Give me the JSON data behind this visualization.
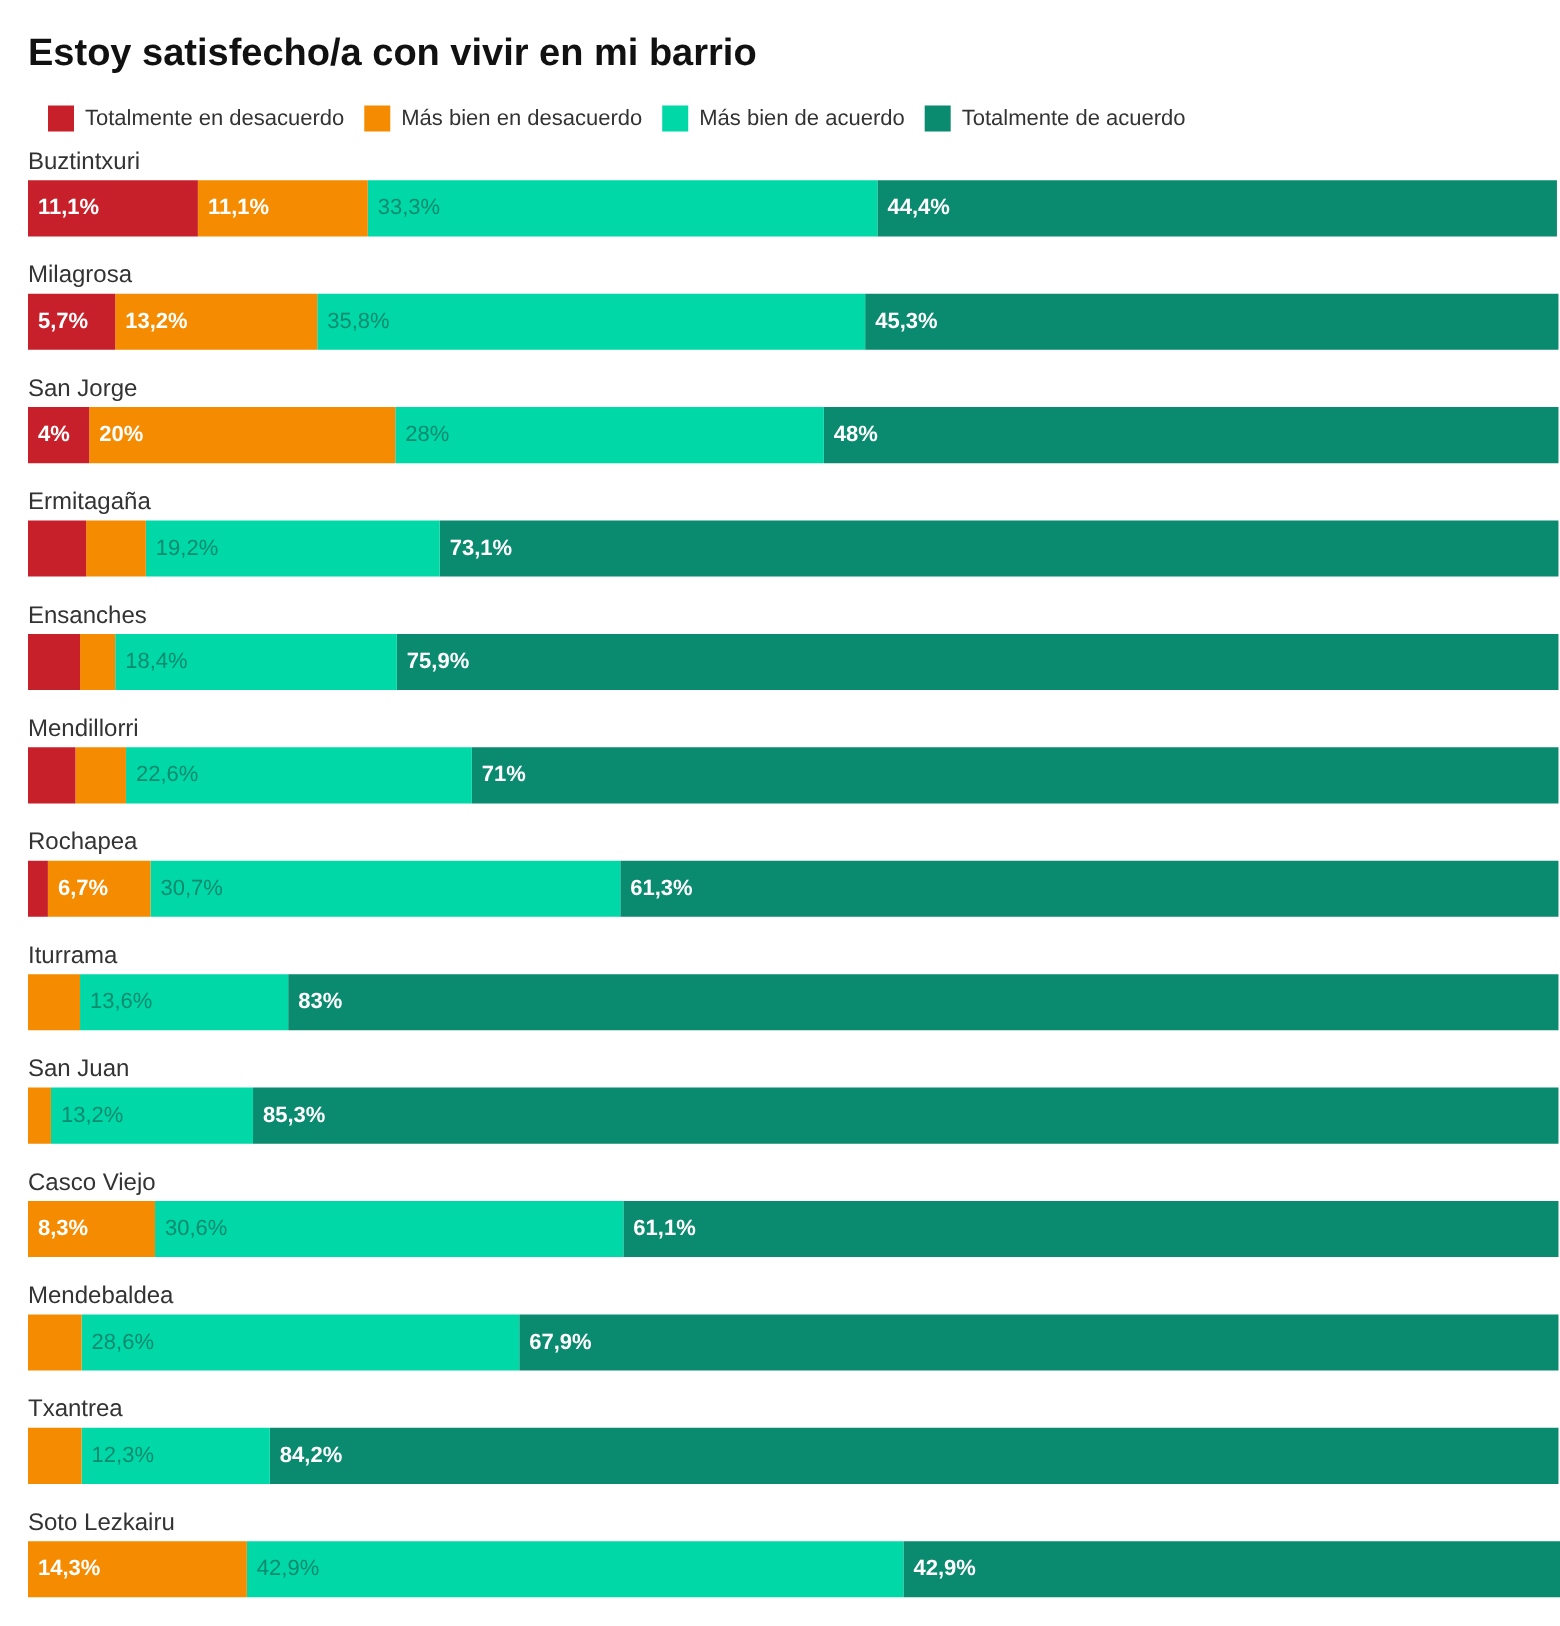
{
  "chart_data": {
    "type": "bar",
    "orientation": "horizontal",
    "stacked": true,
    "title": "Estoy satisfecho/a con vivir en mi barrio",
    "legend": "top left",
    "grid": false,
    "categories": [
      "Buztintxuri",
      "Milagrosa",
      "San Jorge",
      "Ermitagaña",
      "Ensanches",
      "Mendillorri",
      "Rochapea",
      "Iturrama",
      "San Juan",
      "Casco Viejo",
      "Mendebaldea",
      "Txantrea",
      "Soto Lezkairu"
    ],
    "series": [
      {
        "name": "Totalmente en desacuerdo",
        "color": "#c8202a",
        "values": [
          11.1,
          5.7,
          4,
          3.8,
          3.4,
          3.1,
          1.3,
          null,
          null,
          null,
          null,
          null,
          null
        ],
        "value_labels": [
          "11,1%",
          "5,7%",
          "4%",
          null,
          null,
          null,
          null,
          null,
          null,
          null,
          null,
          null,
          null
        ]
      },
      {
        "name": "Más bien en desacuerdo",
        "color": "#f58b00",
        "values": [
          11.1,
          13.2,
          20,
          3.9,
          2.3,
          3.3,
          6.7,
          3.4,
          1.5,
          8.3,
          3.5,
          3.5,
          14.3
        ],
        "value_labels": [
          "11,1%",
          "13,2%",
          "20%",
          null,
          null,
          null,
          "6,7%",
          null,
          null,
          "8,3%",
          null,
          null,
          "14,3%"
        ]
      },
      {
        "name": "Más bien de acuerdo",
        "color": "#00d8a8",
        "values": [
          33.3,
          35.8,
          28,
          19.2,
          18.4,
          22.6,
          30.7,
          13.6,
          13.2,
          30.6,
          28.6,
          12.3,
          42.9
        ],
        "value_labels": [
          "33,3%",
          "35,8%",
          "28%",
          "19,2%",
          "18,4%",
          "22,6%",
          "30,7%",
          "13,6%",
          "13,2%",
          "30,6%",
          "28,6%",
          "12,3%",
          "42,9%"
        ]
      },
      {
        "name": "Totalmente de acuerdo",
        "color": "#0a8a6e",
        "values": [
          44.4,
          45.3,
          48,
          73.1,
          75.9,
          71,
          61.3,
          83,
          85.3,
          61.1,
          67.9,
          84.2,
          42.9
        ],
        "value_labels": [
          "44,4%",
          "45,3%",
          "48%",
          "73,1%",
          "75,9%",
          "71%",
          "61,3%",
          "83%",
          "85,3%",
          "61,1%",
          "67,9%",
          "84,2%",
          "42,9%"
        ]
      }
    ]
  }
}
